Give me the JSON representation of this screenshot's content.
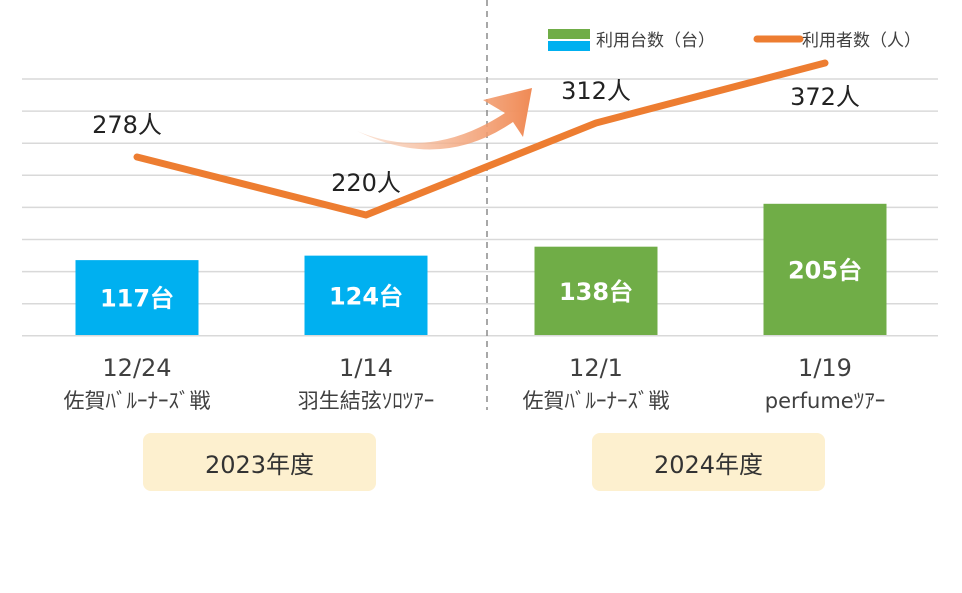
{
  "chart_data": {
    "type": "bar+line",
    "categories": [
      {
        "date": "12/24",
        "event": "佐賀ﾊﾞﾙｰﾅｰｽﾞ戦"
      },
      {
        "date": "1/14",
        "event": "羽生結弦ｿﾛﾂｱｰ"
      },
      {
        "date": "12/1",
        "event": "佐賀ﾊﾞﾙｰﾅｰｽﾞ戦"
      },
      {
        "date": "1/19",
        "event": "perfumeﾂｱｰ"
      }
    ],
    "series": [
      {
        "name": "利用台数（台）",
        "type": "bar",
        "values": [
          117,
          124,
          138,
          205
        ],
        "labels": [
          "117台",
          "124台",
          "138台",
          "205台"
        ]
      },
      {
        "name": "利用者数（人）",
        "type": "line",
        "values": [
          278,
          220,
          312,
          372
        ],
        "labels": [
          "278人",
          "220人",
          "312人",
          "372人"
        ]
      }
    ],
    "fiscal_years": [
      "2023年度",
      "2024年度"
    ],
    "legend_position": "top-right",
    "grid": true,
    "colors": {
      "bar_2023": "#00b0f0",
      "bar_2024": "#70ad47",
      "line": "#ed7d31",
      "arrow": "#f4a582",
      "grid": "#d9d9d9",
      "year_box": "#fdf0cf"
    }
  }
}
